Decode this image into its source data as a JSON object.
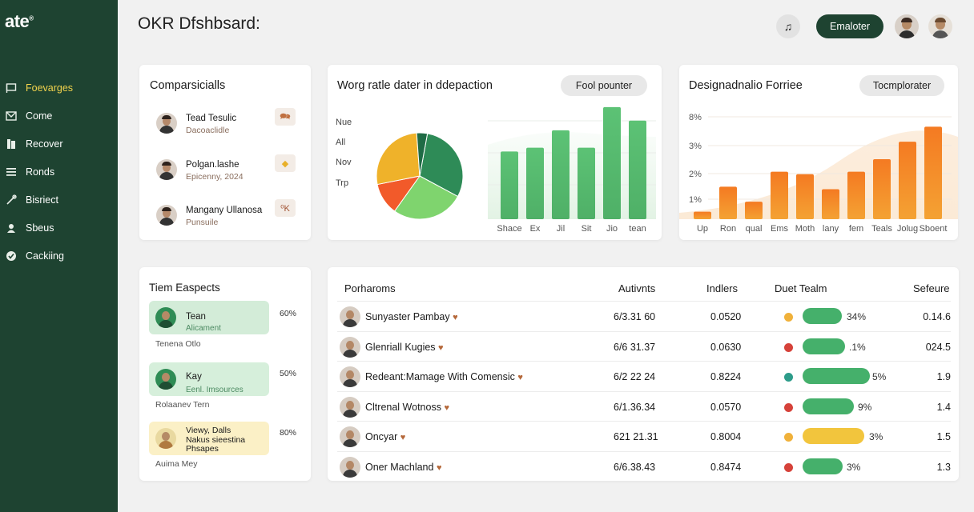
{
  "brand": {
    "name": "ate",
    "mark": "®"
  },
  "sidebar": {
    "items": [
      {
        "label": "Foevarges",
        "icon": "flag-icon",
        "active": true
      },
      {
        "label": "Come",
        "icon": "mail-icon"
      },
      {
        "label": "Recover",
        "icon": "documents-icon"
      },
      {
        "label": "Ronds",
        "icon": "menu-icon"
      },
      {
        "label": "Bisriect",
        "icon": "link-icon"
      },
      {
        "label": "Sbeus",
        "icon": "user-icon"
      },
      {
        "label": "Cackiing",
        "icon": "check-circle-icon"
      }
    ]
  },
  "header": {
    "title": "OKR Dfshbsard:",
    "music_icon": "♫",
    "button_label": "Emaloter"
  },
  "comparisons": {
    "title": "Comparsicialls",
    "rows": [
      {
        "name": "Tead Tesulic",
        "sub": "Dacoaclidle",
        "tag": "🗪",
        "bg": "#fbe0cf"
      },
      {
        "name": "Polgan.lashe",
        "sub": "Epicenny, 2024",
        "tag": "◆",
        "bg": "#f8c7bc"
      },
      {
        "name": "Mangany Ullanosa",
        "sub": "Punsuile",
        "tag": "⁰K",
        "bg": "#f8cec4"
      }
    ]
  },
  "pie_card": {
    "title": "Worg ratle dater in ddepaction",
    "button": "Fool pounter",
    "legend": [
      "Nue",
      "All",
      "Nov",
      "Trp"
    ],
    "x_labels": [
      "Shace",
      "Ex",
      "Jil",
      "Sit",
      "Jio",
      "tean"
    ]
  },
  "orange_card": {
    "title": "Designadnalio Forriee",
    "button": "Tocmplorater",
    "y_labels": [
      "8%",
      "3%",
      "2%",
      "1%"
    ],
    "x_labels": [
      "Up",
      "Ron",
      "qual",
      "Ems",
      "Moth",
      "lany",
      "fem",
      "Teals",
      "Jolug",
      "Sboent"
    ]
  },
  "chart_data": [
    {
      "type": "pie",
      "title": "",
      "slices": [
        {
          "color": "#2e8b57",
          "value": 30
        },
        {
          "color": "#7fd46e",
          "value": 27
        },
        {
          "color": "#f25a2a",
          "value": 12
        },
        {
          "color": "#efb22a",
          "value": 27
        },
        {
          "color": "#1f6b45",
          "value": 4
        }
      ]
    },
    {
      "type": "bar",
      "title": "",
      "categories": [
        "Shace",
        "Ex",
        "Jil",
        "Sit",
        "Jio",
        "tean"
      ],
      "values": [
        3.5,
        3.7,
        4.6,
        3.7,
        5.8,
        5.1
      ],
      "ylim": [
        0,
        6
      ]
    },
    {
      "type": "bar",
      "title": "",
      "categories": [
        "Up",
        "Ron",
        "qual",
        "Ems",
        "Moth",
        "lany",
        "fem",
        "Teals",
        "Jolug",
        "Sboent"
      ],
      "values": [
        0.3,
        1.3,
        0.7,
        1.9,
        1.8,
        1.2,
        1.9,
        2.4,
        3.1,
        3.7
      ],
      "ylim": [
        0,
        4
      ]
    }
  ],
  "team_aspects": {
    "title": "Tiem Easpects",
    "rows": [
      {
        "name": "Tean",
        "sub": "Alicament",
        "pct": "60%",
        "note": "Tenena Otlo",
        "bg": "#d3ecd8"
      },
      {
        "name": "Kay",
        "sub": "Eenl. Imsources",
        "pct": "50%",
        "note": "Rolaanev Tern",
        "bg": "#d6efdb"
      },
      {
        "name": "Viewy, Dalls",
        "name2": "Nakus sieestina",
        "name3": "Phsapes",
        "pct": "80%",
        "note": "Auima Mey",
        "bg": "#fbf0c6"
      }
    ]
  },
  "table": {
    "headers": [
      "Porharoms",
      "Autivnts",
      "Indlers",
      "Duet Tealm",
      "Sefeure"
    ],
    "rows": [
      {
        "name": "Sunyaster Pambay",
        "a": "6/3.31 60",
        "b": "0.0520",
        "dot": "#f0b13a",
        "bar": "#45b06b",
        "fill": 0.35,
        "pct": "34%",
        "score": "0.14.6"
      },
      {
        "name": "Glenriall Kugies",
        "a": "6/6 31.37",
        "b": "0.0630",
        "dot": "#d6423a",
        "bar": "#45b06b",
        "fill": 0.38,
        "pct": ".1%",
        "score": "024.5"
      },
      {
        "name": "Redeant:Mamage With Comensic",
        "a": "6/2 22 24",
        "b": "0.8224",
        "dot": "#2d9c8a",
        "bar": "#45b06b",
        "fill": 0.6,
        "pct": "5%",
        "score": "1.9"
      },
      {
        "name": "Cltrenal Wotnoss",
        "a": "6/1.36.34",
        "b": "0.0570",
        "dot": "#d6423a",
        "bar": "#45b06b",
        "fill": 0.46,
        "pct": "9%",
        "score": "1.4"
      },
      {
        "name": "Oncyar",
        "a": "621 21.31",
        "b": "0.8004",
        "dot": "#f0b13a",
        "bar": "#f2c53d",
        "fill": 0.55,
        "pct": "3%",
        "score": "1.5"
      },
      {
        "name": "Oner Machland",
        "a": "6/6.38.43",
        "b": "0.8474",
        "dot": "#d6423a",
        "bar": "#45b06b",
        "fill": 0.36,
        "pct": "3%",
        "score": "1.3"
      }
    ]
  }
}
